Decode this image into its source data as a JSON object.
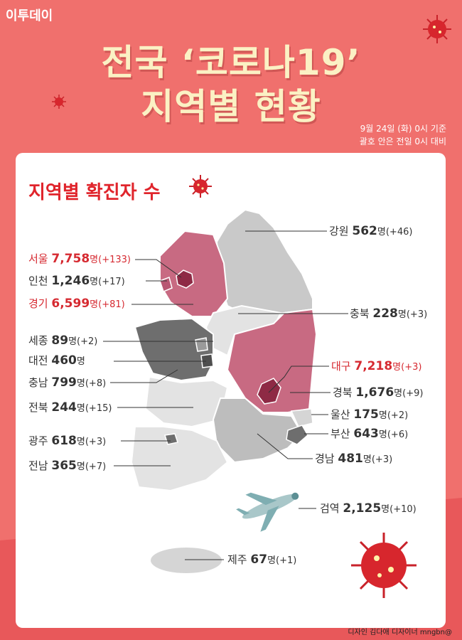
{
  "logo": "이투데이",
  "title_line1": "전국 ‘코로나19’",
  "title_line2": "지역별 현황",
  "note_line1": "9월 24일 (화) 0시 기준",
  "note_line2": "괄호 안은 전일 0시 대비",
  "card_title": "지역별 확진자 수",
  "credit": "디자인 김다애 디자이너 mngbn@",
  "colors": {
    "background": "#f0706d",
    "accent": "#e0252c",
    "title": "#fbf1c4",
    "highlight_dark": "#a8405b",
    "highlight": "#c86a82",
    "gray_dark": "#6e6e6e",
    "gray": "#bdbdbd",
    "gray_light": "#e3e3e3"
  },
  "regions": [
    {
      "id": "seoul",
      "name": "서울",
      "count": "7,758",
      "unit": "명",
      "change": "(+133)",
      "highlight": true
    },
    {
      "id": "incheon",
      "name": "인천",
      "count": "1,246",
      "unit": "명",
      "change": "(+17)",
      "highlight": false
    },
    {
      "id": "gyeonggi",
      "name": "경기",
      "count": "6,599",
      "unit": "명",
      "change": "(+81)",
      "highlight": true
    },
    {
      "id": "sejong",
      "name": "세종",
      "count": "89",
      "unit": "명",
      "change": "(+2)",
      "highlight": false
    },
    {
      "id": "daejeon",
      "name": "대전",
      "count": "460",
      "unit": "명",
      "change": "",
      "highlight": false
    },
    {
      "id": "chungnam",
      "name": "충남",
      "count": "799",
      "unit": "명",
      "change": "(+8)",
      "highlight": false
    },
    {
      "id": "jeonbuk",
      "name": "전북",
      "count": "244",
      "unit": "명",
      "change": "(+15)",
      "highlight": false
    },
    {
      "id": "gwangju",
      "name": "광주",
      "count": "618",
      "unit": "명",
      "change": "(+3)",
      "highlight": false
    },
    {
      "id": "jeonnam",
      "name": "전남",
      "count": "365",
      "unit": "명",
      "change": "(+7)",
      "highlight": false
    },
    {
      "id": "gangwon",
      "name": "강원",
      "count": "562",
      "unit": "명",
      "change": "(+46)",
      "highlight": false
    },
    {
      "id": "chungbuk",
      "name": "충북",
      "count": "228",
      "unit": "명",
      "change": "(+3)",
      "highlight": false
    },
    {
      "id": "daegu",
      "name": "대구",
      "count": "7,218",
      "unit": "명",
      "change": "(+3)",
      "highlight": true
    },
    {
      "id": "gyeongbuk",
      "name": "경북",
      "count": "1,676",
      "unit": "명",
      "change": "(+9)",
      "highlight": false
    },
    {
      "id": "ulsan",
      "name": "울산",
      "count": "175",
      "unit": "명",
      "change": "(+2)",
      "highlight": false
    },
    {
      "id": "busan",
      "name": "부산",
      "count": "643",
      "unit": "명",
      "change": "(+6)",
      "highlight": false
    },
    {
      "id": "gyeongnam",
      "name": "경남",
      "count": "481",
      "unit": "명",
      "change": "(+3)",
      "highlight": false
    },
    {
      "id": "quarantine",
      "name": "검역",
      "count": "2,125",
      "unit": "명",
      "change": "(+10)",
      "highlight": false
    },
    {
      "id": "jeju",
      "name": "제주",
      "count": "67",
      "unit": "명",
      "change": "(+1)",
      "highlight": false
    }
  ]
}
